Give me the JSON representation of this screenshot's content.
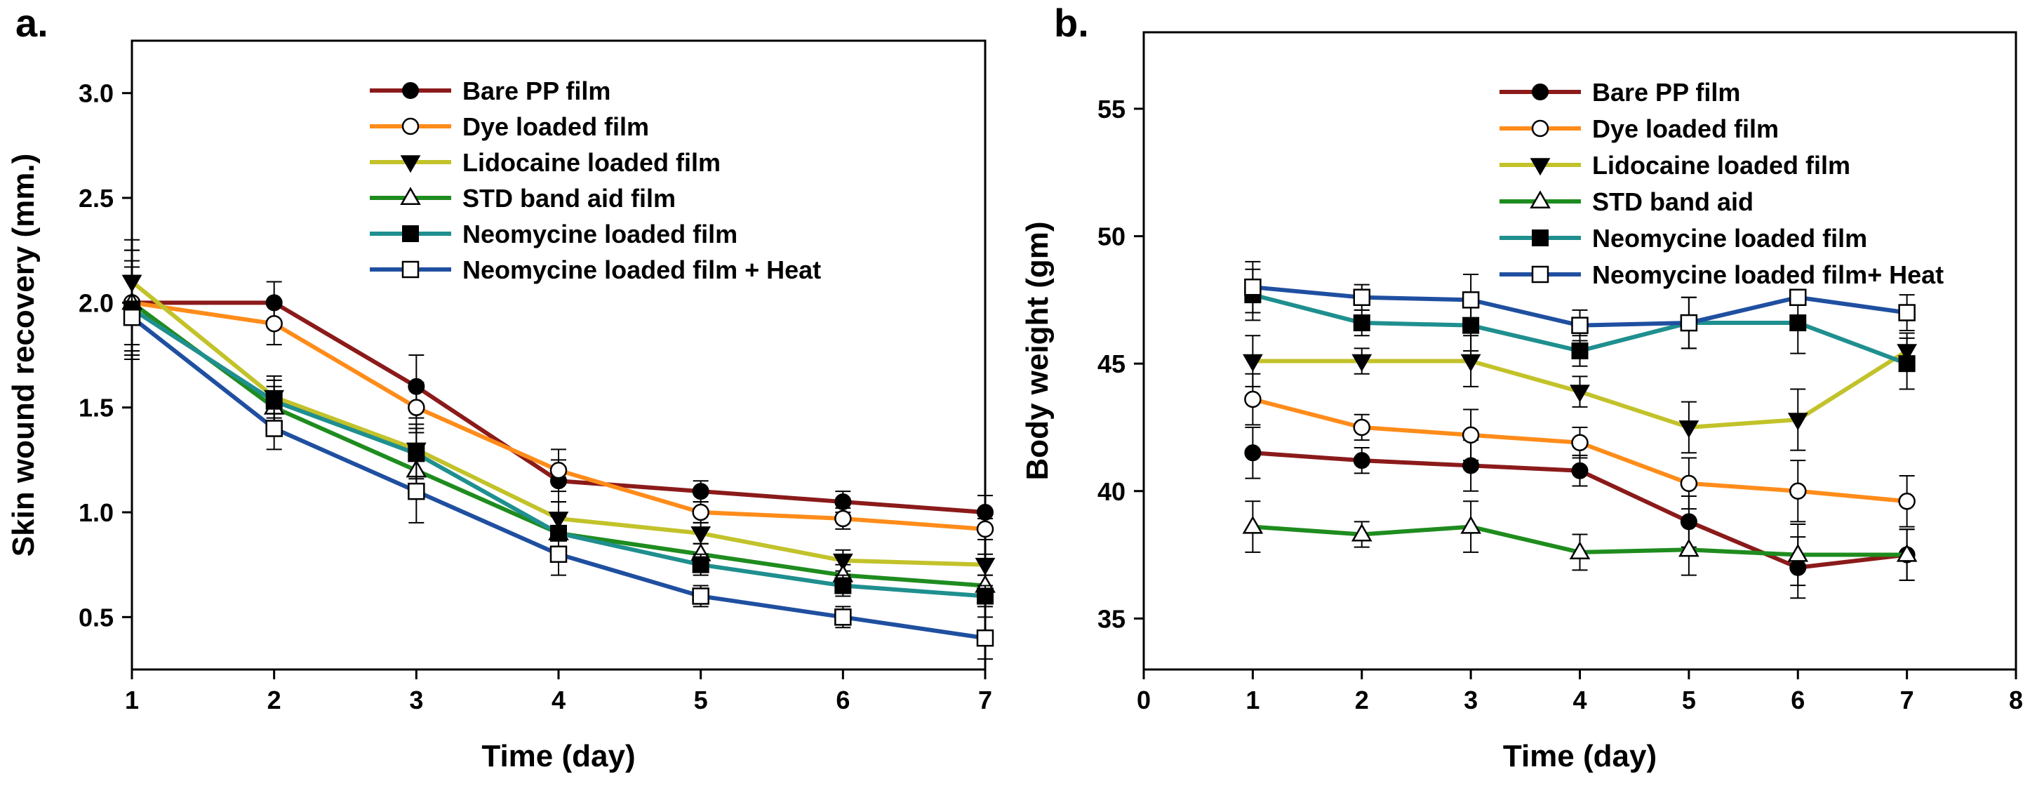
{
  "chart_data": [
    {
      "type": "line",
      "panel_label": "a.",
      "xlabel": "Time (day)",
      "ylabel": "Skin wound recovery (mm.)",
      "xlim": [
        1,
        7
      ],
      "ylim": [
        0.25,
        3.25
      ],
      "xticks": [
        "1",
        "2",
        "3",
        "4",
        "5",
        "6",
        "7"
      ],
      "yticks": [
        "0.5",
        "1.0",
        "1.5",
        "2.0",
        "2.5",
        "3.0"
      ],
      "legend_position": "top-right",
      "x": [
        1,
        2,
        3,
        4,
        5,
        6,
        7
      ],
      "series": [
        {
          "name": "Bare PP film",
          "color": "#8b1a1a",
          "marker": "filled-circle",
          "values": [
            2.0,
            2.0,
            1.6,
            1.15,
            1.1,
            1.05,
            1.0
          ],
          "errors": [
            0.25,
            0.1,
            0.15,
            0.1,
            0.05,
            0.05,
            0.08
          ]
        },
        {
          "name": "Dye loaded film",
          "color": "#ff8c1a",
          "marker": "open-circle",
          "values": [
            2.0,
            1.9,
            1.5,
            1.2,
            1.0,
            0.97,
            0.92
          ],
          "errors": [
            0.25,
            0.1,
            0.12,
            0.1,
            0.05,
            0.05,
            0.05
          ]
        },
        {
          "name": "Lidocaine loaded film",
          "color": "#c2c22a",
          "marker": "filled-triangle-down",
          "values": [
            2.1,
            1.55,
            1.3,
            0.97,
            0.9,
            0.77,
            0.75
          ],
          "errors": [
            0.2,
            0.1,
            0.12,
            0.08,
            0.05,
            0.05,
            0.05
          ]
        },
        {
          "name": "STD band aid film",
          "color": "#1e8c1e",
          "marker": "open-triangle-up",
          "values": [
            2.0,
            1.5,
            1.2,
            0.9,
            0.8,
            0.7,
            0.65
          ],
          "errors": [
            0.2,
            0.1,
            0.12,
            0.08,
            0.05,
            0.05,
            0.05
          ]
        },
        {
          "name": "Neomycine loaded film",
          "color": "#1f8f8f",
          "marker": "filled-square",
          "values": [
            1.97,
            1.53,
            1.28,
            0.9,
            0.75,
            0.65,
            0.6
          ],
          "errors": [
            0.2,
            0.1,
            0.12,
            0.08,
            0.05,
            0.05,
            0.05
          ]
        },
        {
          "name": "Neomycine loaded film + Heat",
          "color": "#1f4fa0",
          "marker": "open-square",
          "values": [
            1.93,
            1.4,
            1.1,
            0.8,
            0.6,
            0.5,
            0.4
          ],
          "errors": [
            0.2,
            0.1,
            0.15,
            0.1,
            0.05,
            0.05,
            0.1
          ]
        }
      ]
    },
    {
      "type": "line",
      "panel_label": "b.",
      "xlabel": "Time (day)",
      "ylabel": "Body weight (gm)",
      "xlim": [
        0,
        8
      ],
      "ylim": [
        33,
        58
      ],
      "xticks": [
        "0",
        "1",
        "2",
        "3",
        "4",
        "5",
        "6",
        "7",
        "8"
      ],
      "yticks": [
        "35",
        "40",
        "45",
        "50",
        "55"
      ],
      "legend_position": "top-right",
      "x": [
        1,
        2,
        3,
        4,
        5,
        6,
        7
      ],
      "series": [
        {
          "name": "Bare PP film",
          "color": "#8b1a1a",
          "marker": "filled-circle",
          "values": [
            41.5,
            41.2,
            41.0,
            40.8,
            38.8,
            37.0,
            37.5
          ],
          "errors": [
            1.0,
            0.5,
            1.0,
            0.6,
            1.0,
            1.2,
            1.0
          ]
        },
        {
          "name": "Dye loaded film",
          "color": "#ff8c1a",
          "marker": "open-circle",
          "values": [
            43.6,
            42.5,
            42.2,
            41.9,
            40.3,
            40.0,
            39.6
          ],
          "errors": [
            1.0,
            0.5,
            1.0,
            0.6,
            1.0,
            1.2,
            1.0
          ]
        },
        {
          "name": "Lidocaine loaded film",
          "color": "#c2c22a",
          "marker": "filled-triangle-down",
          "values": [
            45.1,
            45.1,
            45.1,
            43.9,
            42.5,
            42.8,
            45.5
          ],
          "errors": [
            1.0,
            0.5,
            1.0,
            0.6,
            1.0,
            1.2,
            0.7
          ]
        },
        {
          "name": "STD band aid",
          "color": "#1e8c1e",
          "marker": "open-triangle-up",
          "values": [
            38.6,
            38.3,
            38.6,
            37.6,
            37.7,
            37.5,
            37.5
          ],
          "errors": [
            1.0,
            0.5,
            1.0,
            0.7,
            1.0,
            1.2,
            1.0
          ]
        },
        {
          "name": "Neomycine loaded film",
          "color": "#1f8f8f",
          "marker": "filled-square",
          "values": [
            47.7,
            46.6,
            46.5,
            45.5,
            46.6,
            46.6,
            45.0
          ],
          "errors": [
            1.0,
            0.5,
            1.0,
            0.6,
            1.0,
            1.2,
            1.0
          ]
        },
        {
          "name": "Neomycine loaded film+ Heat",
          "color": "#1f4fa0",
          "marker": "open-square",
          "values": [
            48.0,
            47.6,
            47.5,
            46.5,
            46.6,
            47.6,
            47.0
          ],
          "errors": [
            1.0,
            0.5,
            1.0,
            0.6,
            1.0,
            0.3,
            0.7
          ]
        }
      ]
    }
  ]
}
